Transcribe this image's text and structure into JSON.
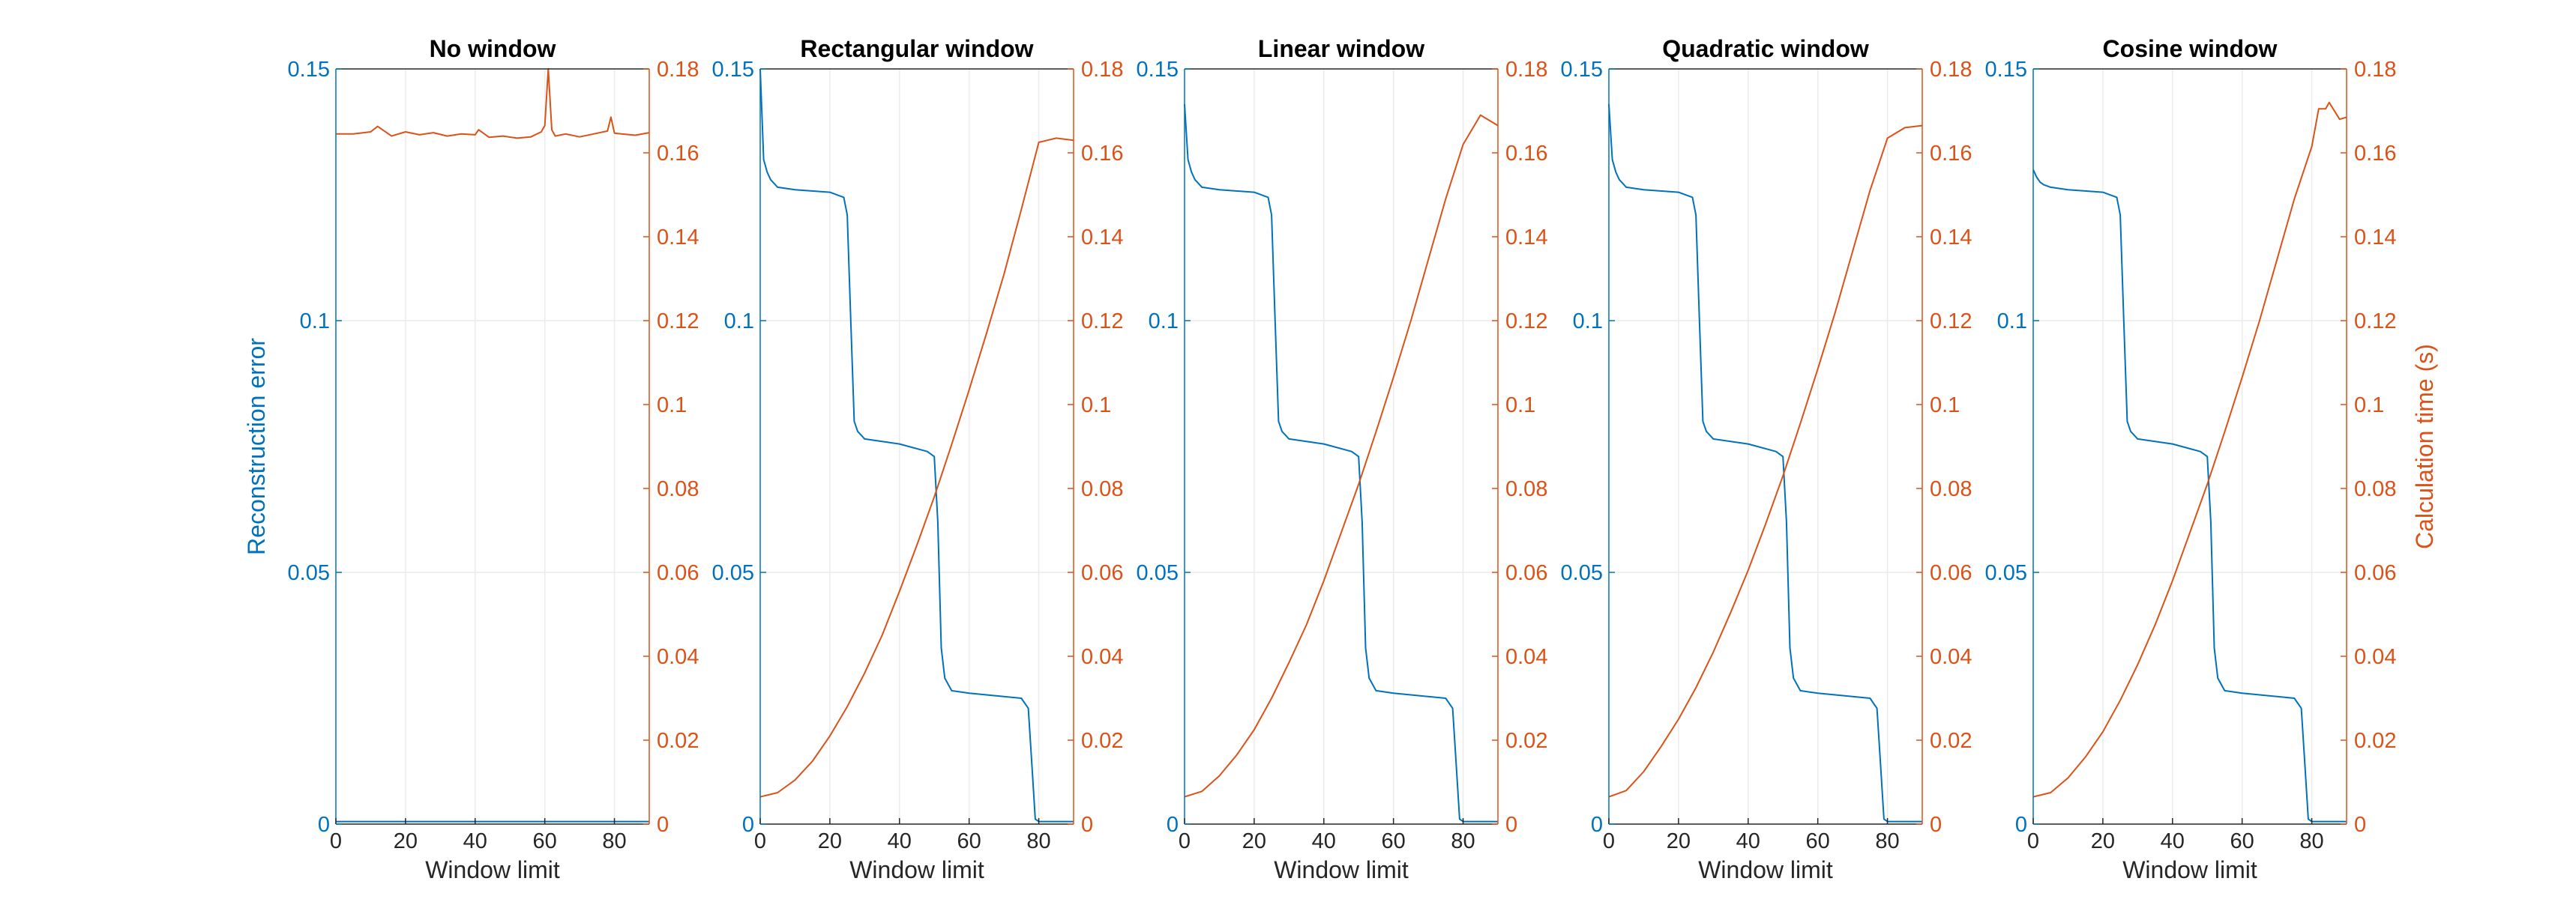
{
  "colors": {
    "left_axis": "#0072BD",
    "right_axis": "#D95319",
    "axis_frame": "#262626",
    "grid": "#EBEBEB"
  },
  "chart_data": [
    {
      "type": "line",
      "title": "No window",
      "xlabel": "Window limit",
      "ylabel_left": "Reconstruction error",
      "ylabel_right": "",
      "xlim": [
        0,
        90
      ],
      "ylim_left": [
        0,
        0.15
      ],
      "ylim_right": [
        0,
        0.18
      ],
      "xticks": [
        0,
        20,
        40,
        60,
        80
      ],
      "yticks_left": [
        "0",
        "0.05",
        "0.1",
        "0.15"
      ],
      "yticks_right": [
        "0",
        "0.02",
        "0.04",
        "0.06",
        "0.08",
        "0.1",
        "0.12",
        "0.14",
        "0.16",
        "0.18"
      ],
      "grid": true,
      "series": [
        {
          "axis": "left",
          "x": [
            0,
            90
          ],
          "y": [
            0.0005,
            0.0005
          ]
        },
        {
          "axis": "right",
          "x": [
            0,
            5,
            10,
            12,
            16,
            20,
            24,
            28,
            32,
            36,
            40,
            41,
            44,
            48,
            52,
            56,
            59,
            60,
            61,
            62,
            63,
            66,
            70,
            74,
            78,
            79,
            80,
            82,
            86,
            90
          ],
          "y": [
            0.1645,
            0.1645,
            0.165,
            0.1663,
            0.164,
            0.165,
            0.1643,
            0.1648,
            0.164,
            0.1645,
            0.1643,
            0.1655,
            0.1637,
            0.164,
            0.1635,
            0.1638,
            0.165,
            0.1665,
            0.18,
            0.1655,
            0.164,
            0.1645,
            0.1638,
            0.1645,
            0.1652,
            0.1685,
            0.1647,
            0.1645,
            0.1642,
            0.1648
          ]
        }
      ]
    },
    {
      "type": "line",
      "title": "Rectangular window",
      "xlabel": "Window limit",
      "ylabel_left": "",
      "ylabel_right": "",
      "xlim": [
        0,
        90
      ],
      "ylim_left": [
        0,
        0.15
      ],
      "ylim_right": [
        0,
        0.18
      ],
      "xticks": [
        0,
        20,
        40,
        60,
        80
      ],
      "yticks_left": [
        "0",
        "0.05",
        "0.1",
        "0.15"
      ],
      "yticks_right": [
        "0",
        "0.02",
        "0.04",
        "0.06",
        "0.08",
        "0.1",
        "0.12",
        "0.14",
        "0.16",
        "0.18"
      ],
      "grid": true,
      "series": [
        {
          "axis": "left",
          "x": [
            0,
            1,
            2,
            3,
            5,
            10,
            20,
            24,
            25,
            26,
            27,
            28,
            30,
            40,
            48,
            50,
            51,
            52,
            53,
            55,
            60,
            75,
            77,
            78,
            79,
            80,
            90
          ],
          "y": [
            0.15,
            0.132,
            0.1295,
            0.128,
            0.1265,
            0.126,
            0.1255,
            0.1245,
            0.121,
            0.1,
            0.08,
            0.078,
            0.0765,
            0.0755,
            0.074,
            0.073,
            0.06,
            0.035,
            0.029,
            0.0265,
            0.026,
            0.025,
            0.023,
            0.012,
            0.001,
            0.0005,
            0.0005
          ]
        },
        {
          "axis": "right",
          "x": [
            0,
            5,
            10,
            15,
            20,
            25,
            30,
            35,
            40,
            45,
            50,
            55,
            60,
            65,
            70,
            75,
            80,
            85,
            90
          ],
          "y": [
            0.0065,
            0.0075,
            0.0105,
            0.015,
            0.021,
            0.028,
            0.036,
            0.045,
            0.0555,
            0.0665,
            0.078,
            0.0905,
            0.1035,
            0.117,
            0.131,
            0.1465,
            0.1625,
            0.1635,
            0.163
          ]
        }
      ]
    },
    {
      "type": "line",
      "title": "Linear window",
      "xlabel": "Window limit",
      "ylabel_left": "",
      "ylabel_right": "",
      "xlim": [
        0,
        90
      ],
      "ylim_left": [
        0,
        0.15
      ],
      "ylim_right": [
        0,
        0.18
      ],
      "xticks": [
        0,
        20,
        40,
        60,
        80
      ],
      "yticks_left": [
        "0",
        "0.05",
        "0.1",
        "0.15"
      ],
      "yticks_right": [
        "0",
        "0.02",
        "0.04",
        "0.06",
        "0.08",
        "0.1",
        "0.12",
        "0.14",
        "0.16",
        "0.18"
      ],
      "grid": true,
      "series": [
        {
          "axis": "left",
          "x": [
            0,
            1,
            2,
            3,
            5,
            10,
            20,
            24,
            25,
            26,
            27,
            28,
            30,
            40,
            48,
            50,
            51,
            52,
            53,
            55,
            60,
            75,
            77,
            78,
            79,
            80,
            90
          ],
          "y": [
            0.143,
            0.132,
            0.1295,
            0.128,
            0.1265,
            0.126,
            0.1255,
            0.1245,
            0.121,
            0.1,
            0.08,
            0.078,
            0.0765,
            0.0755,
            0.074,
            0.073,
            0.06,
            0.035,
            0.029,
            0.0265,
            0.026,
            0.025,
            0.023,
            0.012,
            0.001,
            0.0005,
            0.0005
          ]
        },
        {
          "axis": "right",
          "x": [
            0,
            5,
            10,
            15,
            20,
            25,
            30,
            35,
            40,
            45,
            50,
            55,
            60,
            65,
            70,
            75,
            80,
            85,
            90
          ],
          "y": [
            0.0065,
            0.0078,
            0.0115,
            0.0165,
            0.0225,
            0.03,
            0.0385,
            0.0475,
            0.058,
            0.0695,
            0.081,
            0.0935,
            0.1065,
            0.12,
            0.1345,
            0.149,
            0.162,
            0.169,
            0.1665
          ]
        }
      ]
    },
    {
      "type": "line",
      "title": "Quadratic window",
      "xlabel": "Window limit",
      "ylabel_left": "",
      "ylabel_right": "",
      "xlim": [
        0,
        90
      ],
      "ylim_left": [
        0,
        0.15
      ],
      "ylim_right": [
        0,
        0.18
      ],
      "xticks": [
        0,
        20,
        40,
        60,
        80
      ],
      "yticks_left": [
        "0",
        "0.05",
        "0.1",
        "0.15"
      ],
      "yticks_right": [
        "0",
        "0.02",
        "0.04",
        "0.06",
        "0.08",
        "0.1",
        "0.12",
        "0.14",
        "0.16",
        "0.18"
      ],
      "grid": true,
      "series": [
        {
          "axis": "left",
          "x": [
            0,
            1,
            2,
            3,
            5,
            10,
            20,
            24,
            25,
            26,
            27,
            28,
            30,
            40,
            48,
            50,
            51,
            52,
            53,
            55,
            60,
            75,
            77,
            78,
            79,
            80,
            90
          ],
          "y": [
            0.143,
            0.132,
            0.1295,
            0.128,
            0.1265,
            0.126,
            0.1255,
            0.1245,
            0.121,
            0.1,
            0.08,
            0.078,
            0.0765,
            0.0755,
            0.074,
            0.073,
            0.06,
            0.035,
            0.029,
            0.0265,
            0.026,
            0.025,
            0.023,
            0.012,
            0.001,
            0.0005,
            0.0005
          ]
        },
        {
          "axis": "right",
          "x": [
            0,
            5,
            10,
            15,
            20,
            25,
            30,
            35,
            40,
            45,
            50,
            55,
            60,
            65,
            70,
            75,
            80,
            85,
            90
          ],
          "y": [
            0.0065,
            0.008,
            0.0125,
            0.0185,
            0.025,
            0.0325,
            0.041,
            0.0505,
            0.0605,
            0.0715,
            0.083,
            0.0955,
            0.1085,
            0.122,
            0.1365,
            0.151,
            0.1635,
            0.166,
            0.1665
          ]
        }
      ]
    },
    {
      "type": "line",
      "title": "Cosine window",
      "xlabel": "Window limit",
      "ylabel_left": "",
      "ylabel_right": "Calculation time (s)",
      "xlim": [
        0,
        90
      ],
      "ylim_left": [
        0,
        0.15
      ],
      "ylim_right": [
        0,
        0.18
      ],
      "xticks": [
        0,
        20,
        40,
        60,
        80
      ],
      "yticks_left": [
        "0",
        "0.05",
        "0.1",
        "0.15"
      ],
      "yticks_right": [
        "0",
        "0.02",
        "0.04",
        "0.06",
        "0.08",
        "0.1",
        "0.12",
        "0.14",
        "0.16",
        "0.18"
      ],
      "grid": true,
      "series": [
        {
          "axis": "left",
          "x": [
            0,
            1,
            2,
            3,
            5,
            10,
            20,
            24,
            25,
            26,
            27,
            28,
            30,
            40,
            48,
            50,
            51,
            52,
            53,
            55,
            60,
            75,
            77,
            78,
            79,
            80,
            90
          ],
          "y": [
            0.13,
            0.1285,
            0.1275,
            0.127,
            0.1265,
            0.126,
            0.1255,
            0.1245,
            0.121,
            0.1,
            0.08,
            0.078,
            0.0765,
            0.0755,
            0.074,
            0.073,
            0.06,
            0.035,
            0.029,
            0.0265,
            0.026,
            0.025,
            0.023,
            0.012,
            0.001,
            0.0005,
            0.0005
          ]
        },
        {
          "axis": "right",
          "x": [
            0,
            5,
            10,
            15,
            20,
            25,
            30,
            35,
            40,
            45,
            50,
            55,
            60,
            65,
            70,
            75,
            80,
            82,
            84,
            85,
            88,
            90
          ],
          "y": [
            0.0065,
            0.0075,
            0.011,
            0.016,
            0.022,
            0.0295,
            0.038,
            0.0475,
            0.058,
            0.0695,
            0.081,
            0.0935,
            0.1065,
            0.12,
            0.1345,
            0.149,
            0.1615,
            0.1705,
            0.1705,
            0.172,
            0.168,
            0.1685
          ]
        }
      ]
    }
  ]
}
